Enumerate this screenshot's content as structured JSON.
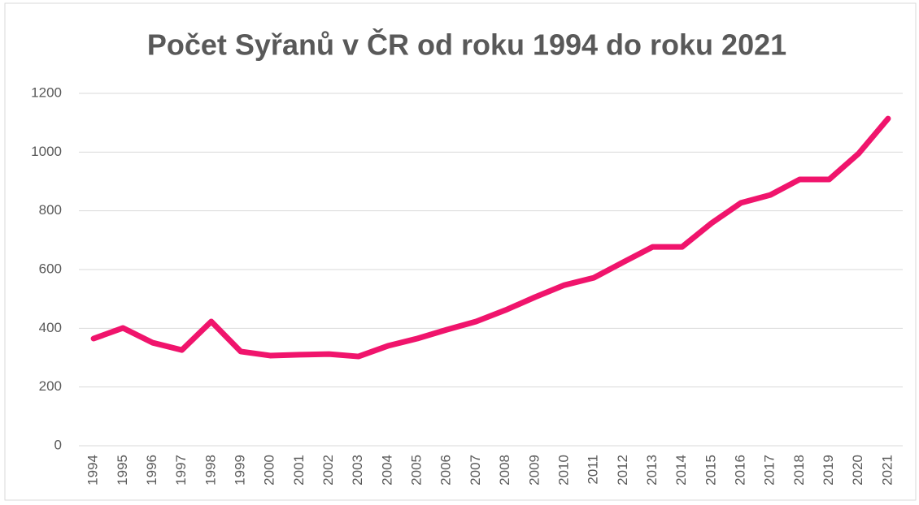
{
  "chart_data": {
    "type": "line",
    "title": "Počet Syřanů v ČR od roku 1994 do roku 2021",
    "categories": [
      "1994",
      "1995",
      "1996",
      "1997",
      "1998",
      "1999",
      "2000",
      "2001",
      "2002",
      "2003",
      "2004",
      "2005",
      "2006",
      "2007",
      "2008",
      "2009",
      "2010",
      "2011",
      "2012",
      "2013",
      "2014",
      "2015",
      "2016",
      "2017",
      "2018",
      "2019",
      "2020",
      "2021"
    ],
    "series": [
      {
        "color": "#f0146c",
        "values": [
          365,
          401,
          351,
          326,
          423,
          321,
          307,
          310,
          312,
          304,
          340,
          365,
          395,
          423,
          462,
          506,
          547,
          572,
          625,
          677,
          677,
          758,
          827,
          854,
          907,
          907,
          995,
          1114
        ]
      }
    ],
    "ylim": [
      0,
      1200
    ],
    "yticks": [
      0,
      200,
      400,
      600,
      800,
      1000,
      1200
    ],
    "grid": true
  }
}
